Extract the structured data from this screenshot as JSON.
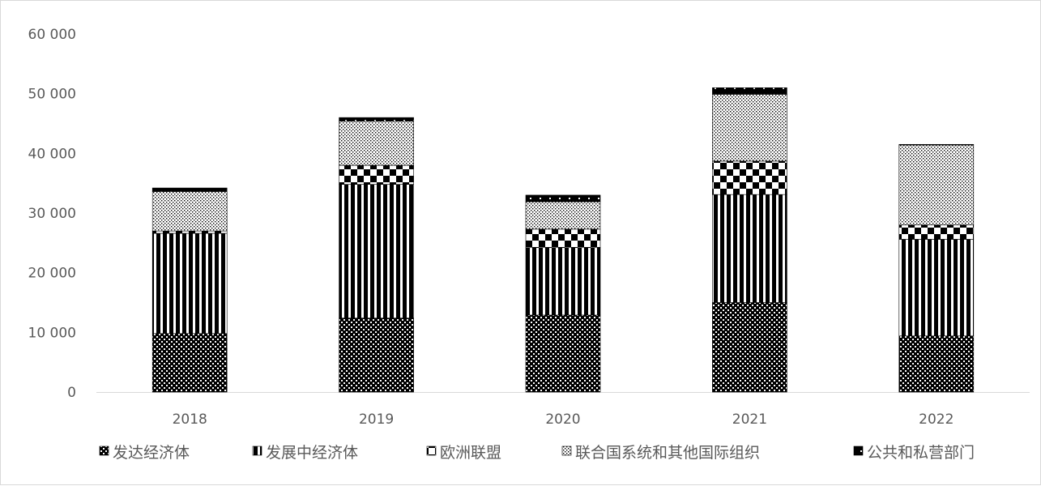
{
  "chart_data": {
    "type": "bar",
    "stacked": true,
    "categories": [
      "2018",
      "2019",
      "2020",
      "2021",
      "2022"
    ],
    "series": [
      {
        "name": "发达经济体",
        "pattern": "checker-dense",
        "values": [
          9800,
          12400,
          12900,
          15000,
          9400
        ]
      },
      {
        "name": "发展中经济体",
        "pattern": "vertical-stripes",
        "values": [
          16800,
          22400,
          11300,
          18100,
          16200
        ]
      },
      {
        "name": "欧洲联盟",
        "pattern": "large-checker",
        "values": [
          400,
          3200,
          3100,
          5600,
          2400
        ]
      },
      {
        "name": "联合国系统和其他国际组织",
        "pattern": "dots",
        "values": [
          6600,
          7400,
          4600,
          11200,
          13400
        ]
      },
      {
        "name": "公共和私营部门",
        "pattern": "solid-dotted",
        "values": [
          600,
          600,
          1100,
          1100,
          100
        ]
      }
    ],
    "yticks": [
      "0",
      "10 000",
      "20 000",
      "30 000",
      "40 000",
      "50 000",
      "60 000"
    ],
    "ylim": [
      0,
      60000
    ],
    "grid": false,
    "legend_position": "bottom",
    "bar_color": "#000000"
  }
}
